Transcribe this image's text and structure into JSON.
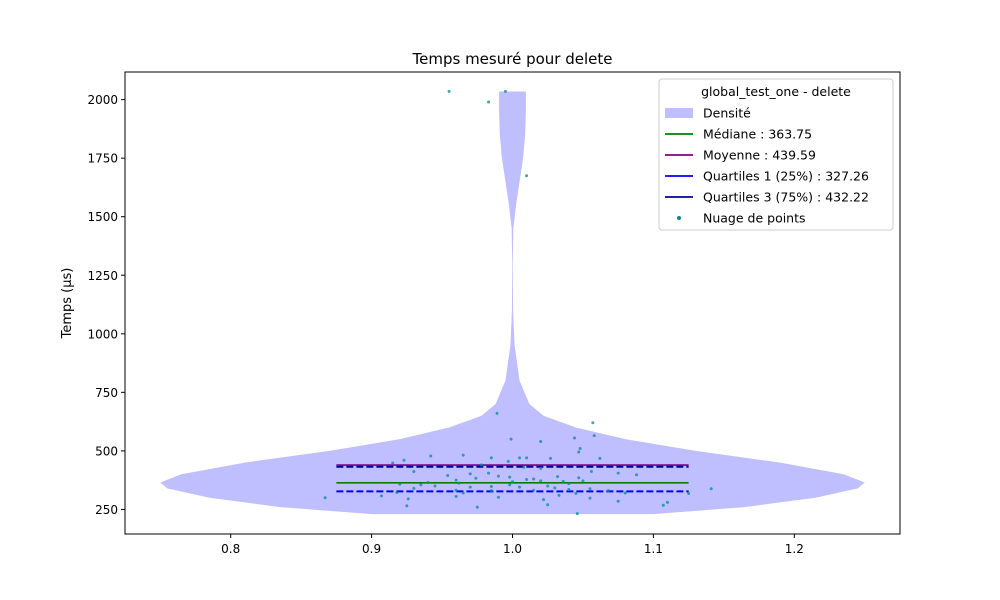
{
  "chart_data": {
    "type": "violin",
    "title": "Temps mesuré pour delete",
    "xlabel": "",
    "ylabel": "Temps (µs)",
    "xlim": [
      0.725,
      1.275
    ],
    "ylim": [
      145,
      2118
    ],
    "x_ticks": [
      0.8,
      0.9,
      1.0,
      1.1,
      1.2
    ],
    "x_tick_labels": [
      "0.8",
      "0.9",
      "1.0",
      "1.1",
      "1.2"
    ],
    "y_ticks": [
      250,
      500,
      750,
      1000,
      1250,
      1500,
      1750,
      2000
    ],
    "y_tick_labels": [
      "250",
      "500",
      "750",
      "1000",
      "1250",
      "1500",
      "1750",
      "2000"
    ],
    "grid": false,
    "legend": {
      "title": "global_test_one - delete",
      "placement": "top-right",
      "entries": [
        {
          "label": "Densité",
          "kind": "patch",
          "color": "#bfbfff"
        },
        {
          "label": "Médiane : 363.75",
          "kind": "line",
          "color": "#008000"
        },
        {
          "label": "Moyenne : 439.59",
          "kind": "line",
          "color": "#800080"
        },
        {
          "label": "Quartiles 1 (25%) : 327.26",
          "kind": "line",
          "color": "#0000ff"
        },
        {
          "label": "Quartiles 3 (75%) : 432.22",
          "kind": "line",
          "color": "#0000a0"
        },
        {
          "label": "Nuage de points",
          "kind": "dot",
          "color": "#008b8b"
        }
      ]
    },
    "violin": {
      "center": 1.0,
      "color": "#bfbfff",
      "density_profile": [
        {
          "y": 230,
          "half_width": 0.1
        },
        {
          "y": 260,
          "half_width": 0.165
        },
        {
          "y": 300,
          "half_width": 0.215
        },
        {
          "y": 340,
          "half_width": 0.245
        },
        {
          "y": 365,
          "half_width": 0.25
        },
        {
          "y": 400,
          "half_width": 0.235
        },
        {
          "y": 450,
          "half_width": 0.19
        },
        {
          "y": 500,
          "half_width": 0.13
        },
        {
          "y": 550,
          "half_width": 0.08
        },
        {
          "y": 600,
          "half_width": 0.045
        },
        {
          "y": 650,
          "half_width": 0.022
        },
        {
          "y": 700,
          "half_width": 0.012
        },
        {
          "y": 800,
          "half_width": 0.005
        },
        {
          "y": 950,
          "half_width": 0.0015
        },
        {
          "y": 1100,
          "half_width": 0.0004
        },
        {
          "y": 1300,
          "half_width": 0.0002
        },
        {
          "y": 1450,
          "half_width": 0.0006
        },
        {
          "y": 1550,
          "half_width": 0.0025
        },
        {
          "y": 1650,
          "half_width": 0.005
        },
        {
          "y": 1750,
          "half_width": 0.0075
        },
        {
          "y": 1850,
          "half_width": 0.009
        },
        {
          "y": 1950,
          "half_width": 0.0095
        },
        {
          "y": 2035,
          "half_width": 0.0095
        }
      ]
    },
    "stat_lines": [
      {
        "name": "median",
        "value": 363.75,
        "x_range": [
          0.875,
          1.125
        ],
        "color": "#008000",
        "style": "solid"
      },
      {
        "name": "mean",
        "value": 439.59,
        "x_range": [
          0.875,
          1.125
        ],
        "color": "#800080",
        "style": "solid"
      },
      {
        "name": "q1",
        "value": 327.26,
        "x_range": [
          0.875,
          1.125
        ],
        "color": "#0000ff",
        "style": "dashed"
      },
      {
        "name": "q3",
        "value": 432.22,
        "x_range": [
          0.875,
          1.125
        ],
        "color": "#0000a0",
        "style": "dashed"
      }
    ],
    "points": {
      "color": "#008b8b",
      "values": [
        {
          "x": 0.955,
          "y": 2035
        },
        {
          "x": 0.983,
          "y": 1990
        },
        {
          "x": 0.995,
          "y": 2035
        },
        {
          "x": 1.01,
          "y": 1675
        },
        {
          "x": 0.989,
          "y": 660
        },
        {
          "x": 1.057,
          "y": 620
        },
        {
          "x": 0.999,
          "y": 550
        },
        {
          "x": 1.02,
          "y": 540
        },
        {
          "x": 1.058,
          "y": 565
        },
        {
          "x": 1.044,
          "y": 555
        },
        {
          "x": 1.048,
          "y": 510
        },
        {
          "x": 1.047,
          "y": 495
        },
        {
          "x": 1.005,
          "y": 470
        },
        {
          "x": 1.01,
          "y": 470
        },
        {
          "x": 0.942,
          "y": 478
        },
        {
          "x": 0.965,
          "y": 482
        },
        {
          "x": 0.985,
          "y": 470
        },
        {
          "x": 1.062,
          "y": 468
        },
        {
          "x": 1.027,
          "y": 468
        },
        {
          "x": 0.923,
          "y": 460
        },
        {
          "x": 0.915,
          "y": 448
        },
        {
          "x": 0.997,
          "y": 455
        },
        {
          "x": 0.978,
          "y": 440
        },
        {
          "x": 1.008,
          "y": 430
        },
        {
          "x": 1.02,
          "y": 425
        },
        {
          "x": 1.075,
          "y": 405
        },
        {
          "x": 0.93,
          "y": 412
        },
        {
          "x": 1.056,
          "y": 412
        },
        {
          "x": 0.97,
          "y": 402
        },
        {
          "x": 0.983,
          "y": 405
        },
        {
          "x": 1.088,
          "y": 398
        },
        {
          "x": 0.954,
          "y": 395
        },
        {
          "x": 0.99,
          "y": 392
        },
        {
          "x": 0.998,
          "y": 388
        },
        {
          "x": 1.032,
          "y": 390
        },
        {
          "x": 1.047,
          "y": 385
        },
        {
          "x": 0.974,
          "y": 383
        },
        {
          "x": 1.01,
          "y": 378
        },
        {
          "x": 1.015,
          "y": 380
        },
        {
          "x": 1.02,
          "y": 372
        },
        {
          "x": 1.036,
          "y": 370
        },
        {
          "x": 1.05,
          "y": 372
        },
        {
          "x": 0.94,
          "y": 365
        },
        {
          "x": 0.962,
          "y": 362
        },
        {
          "x": 0.92,
          "y": 358
        },
        {
          "x": 0.935,
          "y": 355
        },
        {
          "x": 0.998,
          "y": 355
        },
        {
          "x": 1.025,
          "y": 350
        },
        {
          "x": 0.93,
          "y": 340
        },
        {
          "x": 0.97,
          "y": 345
        },
        {
          "x": 0.985,
          "y": 348
        },
        {
          "x": 1.005,
          "y": 345
        },
        {
          "x": 1.03,
          "y": 342
        },
        {
          "x": 1.04,
          "y": 335
        },
        {
          "x": 1.055,
          "y": 338
        },
        {
          "x": 0.96,
          "y": 332
        },
        {
          "x": 0.985,
          "y": 330
        },
        {
          "x": 1.015,
          "y": 332
        },
        {
          "x": 1.068,
          "y": 330
        },
        {
          "x": 0.918,
          "y": 322
        },
        {
          "x": 0.965,
          "y": 320
        },
        {
          "x": 1.045,
          "y": 318
        },
        {
          "x": 1.08,
          "y": 320
        },
        {
          "x": 1.125,
          "y": 318
        },
        {
          "x": 0.907,
          "y": 308
        },
        {
          "x": 0.96,
          "y": 305
        },
        {
          "x": 0.99,
          "y": 302
        },
        {
          "x": 1.033,
          "y": 310
        },
        {
          "x": 0.867,
          "y": 300
        },
        {
          "x": 0.926,
          "y": 295
        },
        {
          "x": 1.055,
          "y": 298
        },
        {
          "x": 1.022,
          "y": 292
        },
        {
          "x": 1.075,
          "y": 285
        },
        {
          "x": 1.11,
          "y": 280
        },
        {
          "x": 0.925,
          "y": 265
        },
        {
          "x": 0.975,
          "y": 260
        },
        {
          "x": 1.025,
          "y": 270
        },
        {
          "x": 1.107,
          "y": 268
        },
        {
          "x": 1.046,
          "y": 232
        },
        {
          "x": 1.141,
          "y": 338
        },
        {
          "x": 0.96,
          "y": 375
        },
        {
          "x": 1.0,
          "y": 368
        },
        {
          "x": 1.04,
          "y": 360
        },
        {
          "x": 0.945,
          "y": 350
        }
      ]
    }
  }
}
